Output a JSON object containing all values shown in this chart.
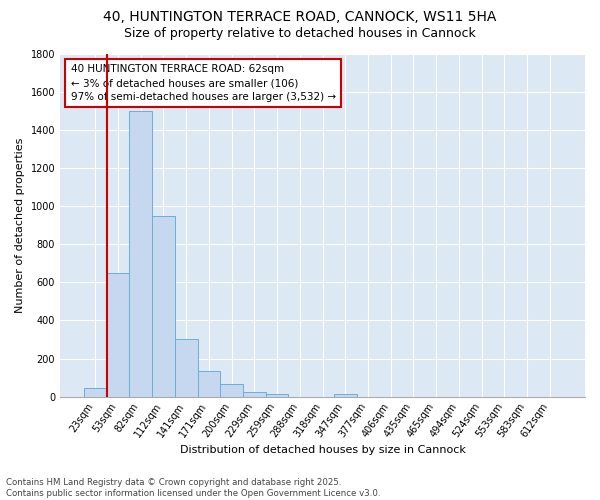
{
  "title": "40, HUNTINGTON TERRACE ROAD, CANNOCK, WS11 5HA",
  "subtitle": "Size of property relative to detached houses in Cannock",
  "xlabel": "Distribution of detached houses by size in Cannock",
  "ylabel": "Number of detached properties",
  "bin_labels": [
    "23sqm",
    "53sqm",
    "82sqm",
    "112sqm",
    "141sqm",
    "171sqm",
    "200sqm",
    "229sqm",
    "259sqm",
    "288sqm",
    "318sqm",
    "347sqm",
    "377sqm",
    "406sqm",
    "435sqm",
    "465sqm",
    "494sqm",
    "524sqm",
    "553sqm",
    "583sqm",
    "612sqm"
  ],
  "bin_values": [
    45,
    650,
    1500,
    950,
    300,
    135,
    65,
    22,
    15,
    0,
    0,
    15,
    0,
    0,
    0,
    0,
    0,
    0,
    0,
    0,
    0
  ],
  "bar_color": "#c5d8f0",
  "bar_edge_color": "#6baed6",
  "annotation_text": "40 HUNTINGTON TERRACE ROAD: 62sqm\n← 3% of detached houses are smaller (106)\n97% of semi-detached houses are larger (3,532) →",
  "annotation_box_color": "white",
  "annotation_box_edge_color": "#cc0000",
  "red_line_color": "#cc0000",
  "ylim": [
    0,
    1800
  ],
  "yticks": [
    0,
    200,
    400,
    600,
    800,
    1000,
    1200,
    1400,
    1600,
    1800
  ],
  "bg_color": "#dce9f5",
  "footnote": "Contains HM Land Registry data © Crown copyright and database right 2025.\nContains public sector information licensed under the Open Government Licence v3.0.",
  "title_fontsize": 10,
  "subtitle_fontsize": 9,
  "axis_label_fontsize": 8,
  "tick_fontsize": 7,
  "annotation_fontsize": 7.5
}
